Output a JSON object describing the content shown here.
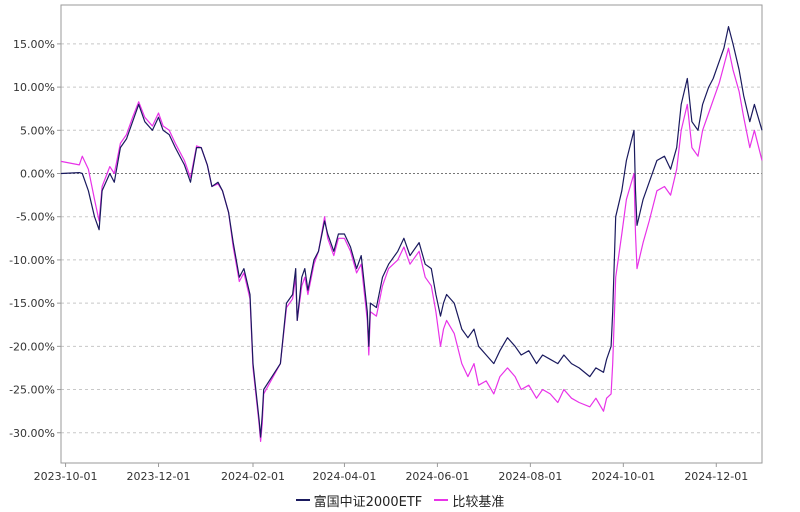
{
  "chart_data": {
    "type": "line",
    "title": "",
    "xlabel": "",
    "ylabel": "",
    "x_ticks": [
      "2023-10-01",
      "2023-12-01",
      "2024-02-01",
      "2024-04-01",
      "2024-06-01",
      "2024-08-01",
      "2024-10-01",
      "2024-12-01"
    ],
    "y_ticks": [
      "15.00%",
      "10.00%",
      "5.00%",
      "0.00%",
      "-5.00%",
      "-10.00%",
      "-15.00%",
      "-20.00%",
      "-25.00%",
      "-30.00%"
    ],
    "y_tick_values": [
      15,
      10,
      5,
      0,
      -5,
      -10,
      -15,
      -20,
      -25,
      -30
    ],
    "ylim": [
      -33.5,
      19.5
    ],
    "xlim": [
      "2023-09-28",
      "2024-12-31"
    ],
    "grid": true,
    "legend_position": "bottom",
    "series": [
      {
        "name": "富国中证2000ETF",
        "color": "#1a1a5e",
        "points": [
          [
            "2023-09-28",
            0.0
          ],
          [
            "2023-10-10",
            0.1
          ],
          [
            "2023-10-12",
            0.0
          ],
          [
            "2023-10-16",
            -2.0
          ],
          [
            "2023-10-20",
            -5.0
          ],
          [
            "2023-10-23",
            -6.5
          ],
          [
            "2023-10-25",
            -2.0
          ],
          [
            "2023-10-30",
            0.0
          ],
          [
            "2023-11-02",
            -1.0
          ],
          [
            "2023-11-06",
            3.0
          ],
          [
            "2023-11-10",
            4.0
          ],
          [
            "2023-11-14",
            6.0
          ],
          [
            "2023-11-18",
            8.0
          ],
          [
            "2023-11-22",
            6.0
          ],
          [
            "2023-11-27",
            5.0
          ],
          [
            "2023-12-01",
            6.5
          ],
          [
            "2023-12-04",
            5.0
          ],
          [
            "2023-12-08",
            4.5
          ],
          [
            "2023-12-12",
            3.0
          ],
          [
            "2023-12-18",
            1.0
          ],
          [
            "2023-12-22",
            -1.0
          ],
          [
            "2023-12-26",
            3.0
          ],
          [
            "2023-12-29",
            3.0
          ],
          [
            "2024-01-02",
            1.0
          ],
          [
            "2024-01-05",
            -1.5
          ],
          [
            "2024-01-09",
            -1.0
          ],
          [
            "2024-01-12",
            -2.0
          ],
          [
            "2024-01-16",
            -4.5
          ],
          [
            "2024-01-19",
            -8.0
          ],
          [
            "2024-01-23",
            -12.0
          ],
          [
            "2024-01-26",
            -11.0
          ],
          [
            "2024-01-30",
            -14.0
          ],
          [
            "2024-02-01",
            -22.0
          ],
          [
            "2024-02-05",
            -28.5
          ],
          [
            "2024-02-06",
            -30.5
          ],
          [
            "2024-02-07",
            -28.0
          ],
          [
            "2024-02-08",
            -25.0
          ],
          [
            "2024-02-19",
            -22.0
          ],
          [
            "2024-02-23",
            -15.0
          ],
          [
            "2024-02-27",
            -14.0
          ],
          [
            "2024-02-29",
            -11.0
          ],
          [
            "2024-03-01",
            -17.0
          ],
          [
            "2024-03-04",
            -12.0
          ],
          [
            "2024-03-06",
            -11.0
          ],
          [
            "2024-03-08",
            -13.5
          ],
          [
            "2024-03-12",
            -10.0
          ],
          [
            "2024-03-15",
            -9.0
          ],
          [
            "2024-03-19",
            -5.5
          ],
          [
            "2024-03-21",
            -7.0
          ],
          [
            "2024-03-25",
            -9.0
          ],
          [
            "2024-03-28",
            -7.0
          ],
          [
            "2024-04-01",
            -7.0
          ],
          [
            "2024-04-05",
            -8.5
          ],
          [
            "2024-04-09",
            -11.0
          ],
          [
            "2024-04-12",
            -9.5
          ],
          [
            "2024-04-16",
            -16.0
          ],
          [
            "2024-04-17",
            -20.0
          ],
          [
            "2024-04-18",
            -15.0
          ],
          [
            "2024-04-22",
            -15.5
          ],
          [
            "2024-04-26",
            -12.0
          ],
          [
            "2024-04-30",
            -10.5
          ],
          [
            "2024-05-06",
            -9.0
          ],
          [
            "2024-05-10",
            -7.5
          ],
          [
            "2024-05-14",
            -9.5
          ],
          [
            "2024-05-20",
            -8.0
          ],
          [
            "2024-05-24",
            -10.5
          ],
          [
            "2024-05-28",
            -11.0
          ],
          [
            "2024-05-31",
            -14.0
          ],
          [
            "2024-06-03",
            -16.5
          ],
          [
            "2024-06-05",
            -15.0
          ],
          [
            "2024-06-07",
            -14.0
          ],
          [
            "2024-06-12",
            -15.0
          ],
          [
            "2024-06-17",
            -18.0
          ],
          [
            "2024-06-21",
            -19.0
          ],
          [
            "2024-06-25",
            -18.0
          ],
          [
            "2024-06-28",
            -20.0
          ],
          [
            "2024-07-03",
            -21.0
          ],
          [
            "2024-07-08",
            -22.0
          ],
          [
            "2024-07-12",
            -20.5
          ],
          [
            "2024-07-17",
            -19.0
          ],
          [
            "2024-07-22",
            -20.0
          ],
          [
            "2024-07-26",
            -21.0
          ],
          [
            "2024-07-31",
            -20.5
          ],
          [
            "2024-08-05",
            -22.0
          ],
          [
            "2024-08-09",
            -21.0
          ],
          [
            "2024-08-14",
            -21.5
          ],
          [
            "2024-08-19",
            -22.0
          ],
          [
            "2024-08-23",
            -21.0
          ],
          [
            "2024-08-28",
            -22.0
          ],
          [
            "2024-09-02",
            -22.5
          ],
          [
            "2024-09-09",
            -23.5
          ],
          [
            "2024-09-13",
            -22.5
          ],
          [
            "2024-09-18",
            -23.0
          ],
          [
            "2024-09-20",
            -21.5
          ],
          [
            "2024-09-23",
            -20.0
          ],
          [
            "2024-09-24",
            -16.0
          ],
          [
            "2024-09-26",
            -5.0
          ],
          [
            "2024-09-30",
            -2.0
          ],
          [
            "2024-10-03",
            1.5
          ],
          [
            "2024-10-08",
            5.0
          ],
          [
            "2024-10-09",
            -2.0
          ],
          [
            "2024-10-10",
            -6.0
          ],
          [
            "2024-10-14",
            -3.0
          ],
          [
            "2024-10-18",
            -1.0
          ],
          [
            "2024-10-23",
            1.5
          ],
          [
            "2024-10-28",
            2.0
          ],
          [
            "2024-11-01",
            0.5
          ],
          [
            "2024-11-05",
            3.0
          ],
          [
            "2024-11-08",
            8.0
          ],
          [
            "2024-11-12",
            11.0
          ],
          [
            "2024-11-15",
            6.0
          ],
          [
            "2024-11-19",
            5.0
          ],
          [
            "2024-11-22",
            8.0
          ],
          [
            "2024-11-26",
            10.0
          ],
          [
            "2024-11-29",
            11.0
          ],
          [
            "2024-12-03",
            13.0
          ],
          [
            "2024-12-06",
            14.5
          ],
          [
            "2024-12-09",
            17.0
          ],
          [
            "2024-12-12",
            15.0
          ],
          [
            "2024-12-16",
            12.0
          ],
          [
            "2024-12-19",
            9.0
          ],
          [
            "2024-12-23",
            6.0
          ],
          [
            "2024-12-26",
            8.0
          ],
          [
            "2024-12-31",
            5.0
          ]
        ]
      },
      {
        "name": "比较基准",
        "color": "#e833e8",
        "points": [
          [
            "2023-09-28",
            1.4
          ],
          [
            "2023-10-10",
            1.0
          ],
          [
            "2023-10-12",
            2.0
          ],
          [
            "2023-10-16",
            0.5
          ],
          [
            "2023-10-20",
            -3.0
          ],
          [
            "2023-10-23",
            -5.5
          ],
          [
            "2023-10-25",
            -1.5
          ],
          [
            "2023-10-30",
            0.8
          ],
          [
            "2023-11-02",
            0.0
          ],
          [
            "2023-11-06",
            3.5
          ],
          [
            "2023-11-10",
            4.5
          ],
          [
            "2023-11-14",
            6.5
          ],
          [
            "2023-11-18",
            8.3
          ],
          [
            "2023-11-22",
            6.5
          ],
          [
            "2023-11-27",
            5.5
          ],
          [
            "2023-12-01",
            7.0
          ],
          [
            "2023-12-04",
            5.5
          ],
          [
            "2023-12-08",
            5.0
          ],
          [
            "2023-12-12",
            3.5
          ],
          [
            "2023-12-18",
            1.5
          ],
          [
            "2023-12-22",
            -0.5
          ],
          [
            "2023-12-26",
            3.2
          ],
          [
            "2023-12-29",
            3.0
          ],
          [
            "2024-01-02",
            1.0
          ],
          [
            "2024-01-05",
            -1.5
          ],
          [
            "2024-01-09",
            -1.2
          ],
          [
            "2024-01-12",
            -2.0
          ],
          [
            "2024-01-16",
            -4.5
          ],
          [
            "2024-01-19",
            -8.5
          ],
          [
            "2024-01-23",
            -12.5
          ],
          [
            "2024-01-26",
            -11.5
          ],
          [
            "2024-01-30",
            -14.5
          ],
          [
            "2024-02-01",
            -22.5
          ],
          [
            "2024-02-05",
            -29.0
          ],
          [
            "2024-02-06",
            -31.0
          ],
          [
            "2024-02-07",
            -29.0
          ],
          [
            "2024-02-08",
            -25.5
          ],
          [
            "2024-02-19",
            -22.0
          ],
          [
            "2024-02-23",
            -15.5
          ],
          [
            "2024-02-27",
            -14.5
          ],
          [
            "2024-02-29",
            -12.0
          ],
          [
            "2024-03-01",
            -17.0
          ],
          [
            "2024-03-04",
            -13.0
          ],
          [
            "2024-03-06",
            -12.0
          ],
          [
            "2024-03-08",
            -14.0
          ],
          [
            "2024-03-12",
            -10.5
          ],
          [
            "2024-03-15",
            -9.0
          ],
          [
            "2024-03-19",
            -5.0
          ],
          [
            "2024-03-21",
            -7.5
          ],
          [
            "2024-03-25",
            -9.5
          ],
          [
            "2024-03-28",
            -7.5
          ],
          [
            "2024-04-01",
            -7.5
          ],
          [
            "2024-04-05",
            -9.0
          ],
          [
            "2024-04-09",
            -11.5
          ],
          [
            "2024-04-12",
            -10.5
          ],
          [
            "2024-04-16",
            -17.0
          ],
          [
            "2024-04-17",
            -21.0
          ],
          [
            "2024-04-18",
            -16.0
          ],
          [
            "2024-04-22",
            -16.5
          ],
          [
            "2024-04-26",
            -13.0
          ],
          [
            "2024-04-30",
            -11.0
          ],
          [
            "2024-05-06",
            -10.0
          ],
          [
            "2024-05-10",
            -8.5
          ],
          [
            "2024-05-14",
            -10.5
          ],
          [
            "2024-05-20",
            -9.0
          ],
          [
            "2024-05-24",
            -12.0
          ],
          [
            "2024-05-28",
            -13.0
          ],
          [
            "2024-05-31",
            -16.0
          ],
          [
            "2024-06-03",
            -20.0
          ],
          [
            "2024-06-05",
            -18.0
          ],
          [
            "2024-06-07",
            -17.0
          ],
          [
            "2024-06-12",
            -18.5
          ],
          [
            "2024-06-17",
            -22.0
          ],
          [
            "2024-06-21",
            -23.5
          ],
          [
            "2024-06-25",
            -22.0
          ],
          [
            "2024-06-28",
            -24.5
          ],
          [
            "2024-07-03",
            -24.0
          ],
          [
            "2024-07-08",
            -25.5
          ],
          [
            "2024-07-12",
            -23.5
          ],
          [
            "2024-07-17",
            -22.5
          ],
          [
            "2024-07-22",
            -23.5
          ],
          [
            "2024-07-26",
            -25.0
          ],
          [
            "2024-07-31",
            -24.5
          ],
          [
            "2024-08-05",
            -26.0
          ],
          [
            "2024-08-09",
            -25.0
          ],
          [
            "2024-08-14",
            -25.5
          ],
          [
            "2024-08-19",
            -26.5
          ],
          [
            "2024-08-23",
            -25.0
          ],
          [
            "2024-08-28",
            -26.0
          ],
          [
            "2024-09-02",
            -26.5
          ],
          [
            "2024-09-09",
            -27.0
          ],
          [
            "2024-09-13",
            -26.0
          ],
          [
            "2024-09-18",
            -27.5
          ],
          [
            "2024-09-20",
            -26.0
          ],
          [
            "2024-09-23",
            -25.5
          ],
          [
            "2024-09-24",
            -22.0
          ],
          [
            "2024-09-26",
            -12.0
          ],
          [
            "2024-09-30",
            -7.0
          ],
          [
            "2024-10-03",
            -3.0
          ],
          [
            "2024-10-08",
            0.0
          ],
          [
            "2024-10-09",
            -7.0
          ],
          [
            "2024-10-10",
            -11.0
          ],
          [
            "2024-10-14",
            -8.0
          ],
          [
            "2024-10-18",
            -5.5
          ],
          [
            "2024-10-23",
            -2.0
          ],
          [
            "2024-10-28",
            -1.5
          ],
          [
            "2024-11-01",
            -2.5
          ],
          [
            "2024-11-05",
            0.5
          ],
          [
            "2024-11-08",
            5.0
          ],
          [
            "2024-11-12",
            8.0
          ],
          [
            "2024-11-15",
            3.0
          ],
          [
            "2024-11-19",
            2.0
          ],
          [
            "2024-11-22",
            5.0
          ],
          [
            "2024-11-26",
            7.0
          ],
          [
            "2024-11-29",
            8.5
          ],
          [
            "2024-12-03",
            10.5
          ],
          [
            "2024-12-06",
            12.5
          ],
          [
            "2024-12-09",
            14.5
          ],
          [
            "2024-12-12",
            12.0
          ],
          [
            "2024-12-16",
            9.5
          ],
          [
            "2024-12-19",
            6.5
          ],
          [
            "2024-12-23",
            3.0
          ],
          [
            "2024-12-26",
            5.0
          ],
          [
            "2024-12-31",
            1.5
          ]
        ]
      }
    ]
  }
}
